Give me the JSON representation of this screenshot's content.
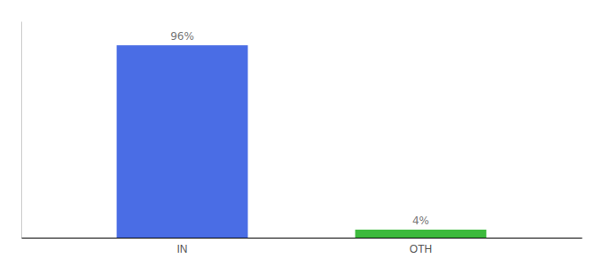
{
  "chart_data": {
    "type": "bar",
    "categories": [
      "IN",
      "OTH"
    ],
    "values": [
      96,
      4
    ],
    "value_labels": [
      "96%",
      "4%"
    ],
    "colors": [
      "#4a6de5",
      "#3dba3d"
    ],
    "ylim": [
      0,
      108
    ],
    "data_labels": true,
    "tick_labels": "x",
    "grid": false
  }
}
